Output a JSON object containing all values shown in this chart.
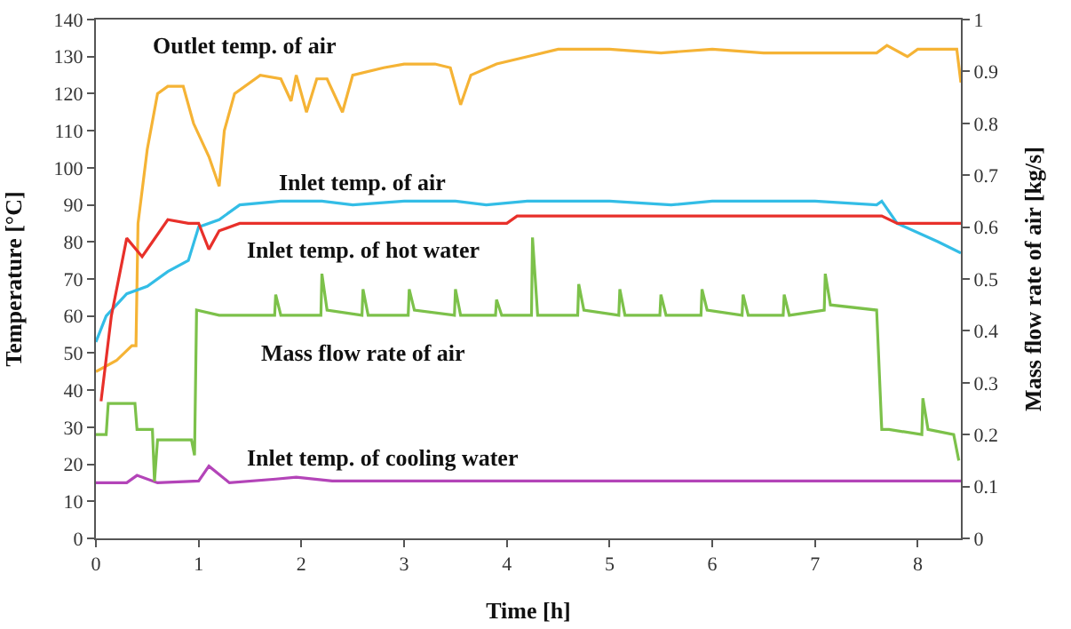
{
  "chart_data": {
    "type": "line",
    "xlabel": "Time [h]",
    "ylabel": "Temperature [°C]",
    "y2label": "Mass flow rate of air [kg/s]",
    "xlim": [
      0,
      8.42
    ],
    "xticks": [
      0,
      1,
      2,
      3,
      4,
      5,
      6,
      7,
      8
    ],
    "ylim": [
      0,
      140
    ],
    "yticks": [
      0,
      10,
      20,
      30,
      40,
      50,
      60,
      70,
      80,
      90,
      100,
      110,
      120,
      130,
      140
    ],
    "y2lim": [
      0,
      1
    ],
    "y2ticks": [
      0,
      0.1,
      0.2,
      0.3,
      0.4,
      0.5,
      0.6,
      0.7,
      0.8,
      0.9,
      1
    ],
    "legend": false,
    "marker": "none",
    "line_style": "solid",
    "series": [
      {
        "name": "Outlet temp. of air",
        "color": "#f5b335",
        "x": [
          0,
          0.2,
          0.35,
          0.39,
          0.41,
          0.5,
          0.6,
          0.7,
          0.85,
          0.95,
          1.1,
          1.2,
          1.25,
          1.35,
          1.6,
          1.8,
          1.9,
          1.95,
          2.05,
          2.15,
          2.25,
          2.4,
          2.5,
          2.8,
          3.0,
          3.3,
          3.45,
          3.55,
          3.65,
          3.9,
          4.2,
          4.5,
          5.0,
          5.5,
          6.0,
          6.5,
          7.0,
          7.6,
          7.7,
          7.9,
          8.0,
          8.2,
          8.38,
          8.42
        ],
        "values": [
          45,
          48,
          52,
          52,
          85,
          105,
          120,
          122,
          122,
          112,
          103,
          95,
          110,
          120,
          125,
          124,
          118,
          125,
          115,
          124,
          124,
          115,
          125,
          127,
          128,
          128,
          127,
          117,
          125,
          128,
          130,
          132,
          132,
          131,
          132,
          131,
          131,
          131,
          133,
          130,
          132,
          132,
          132,
          123
        ]
      },
      {
        "name": "Inlet temp. of air",
        "color": "#33bde6",
        "x": [
          0,
          0.1,
          0.3,
          0.5,
          0.7,
          0.9,
          1.0,
          1.2,
          1.4,
          1.8,
          2.2,
          2.5,
          3.0,
          3.5,
          3.8,
          4.2,
          5.0,
          5.6,
          6.0,
          7.0,
          7.6,
          7.65,
          7.8,
          8.2,
          8.42
        ],
        "values": [
          53,
          60,
          66,
          68,
          72,
          75,
          84,
          86,
          90,
          91,
          91,
          90,
          91,
          91,
          90,
          91,
          91,
          90,
          91,
          91,
          90,
          91,
          85,
          80,
          77
        ]
      },
      {
        "name": "Inlet temp. of hot water",
        "color": "#e8302a",
        "x": [
          0.05,
          0.15,
          0.3,
          0.45,
          0.55,
          0.7,
          0.9,
          1.0,
          1.1,
          1.2,
          1.4,
          2.0,
          3.0,
          4.0,
          4.1,
          5.0,
          6.0,
          7.0,
          7.65,
          7.8,
          8.42
        ],
        "values": [
          37,
          60,
          81,
          76,
          80,
          86,
          85,
          85,
          78,
          83,
          85,
          85,
          85,
          85,
          87,
          87,
          87,
          87,
          87,
          85,
          85
        ]
      },
      {
        "name": "Mass flow rate of air",
        "color": "#7cc14a",
        "axis": "y2",
        "x": [
          0,
          0.1,
          0.12,
          0.38,
          0.4,
          0.55,
          0.57,
          0.6,
          0.93,
          0.96,
          0.98,
          1.2,
          1.74,
          1.75,
          1.8,
          2.19,
          2.2,
          2.25,
          2.59,
          2.6,
          2.65,
          3.04,
          3.05,
          3.1,
          3.49,
          3.5,
          3.55,
          3.89,
          3.9,
          3.95,
          4.24,
          4.25,
          4.3,
          4.69,
          4.7,
          4.75,
          5.09,
          5.1,
          5.15,
          5.49,
          5.5,
          5.55,
          5.89,
          5.9,
          5.95,
          6.29,
          6.3,
          6.35,
          6.69,
          6.7,
          6.75,
          7.09,
          7.1,
          7.15,
          7.6,
          7.65,
          7.72,
          8.04,
          8.05,
          8.1,
          8.35,
          8.4
        ],
        "values": [
          0.2,
          0.2,
          0.26,
          0.26,
          0.21,
          0.21,
          0.11,
          0.19,
          0.19,
          0.16,
          0.44,
          0.43,
          0.43,
          0.47,
          0.43,
          0.43,
          0.51,
          0.44,
          0.43,
          0.48,
          0.43,
          0.43,
          0.48,
          0.44,
          0.43,
          0.48,
          0.43,
          0.43,
          0.46,
          0.43,
          0.43,
          0.58,
          0.43,
          0.43,
          0.49,
          0.44,
          0.43,
          0.48,
          0.43,
          0.43,
          0.47,
          0.43,
          0.43,
          0.48,
          0.44,
          0.43,
          0.47,
          0.43,
          0.43,
          0.47,
          0.43,
          0.44,
          0.51,
          0.45,
          0.44,
          0.21,
          0.21,
          0.2,
          0.27,
          0.21,
          0.2,
          0.15
        ]
      },
      {
        "name": "Inlet temp. of cooling water",
        "color": "#b344b8",
        "x": [
          0,
          0.3,
          0.4,
          0.6,
          1.0,
          1.1,
          1.3,
          1.75,
          1.95,
          2.3,
          3.0,
          4.0,
          5.0,
          6.0,
          7.0,
          8.0,
          8.42
        ],
        "values": [
          15,
          15,
          17,
          15,
          15.5,
          19.5,
          15,
          16,
          16.5,
          15.5,
          15.5,
          15.5,
          15.5,
          15.5,
          15.5,
          15.5,
          15.5
        ]
      }
    ]
  }
}
